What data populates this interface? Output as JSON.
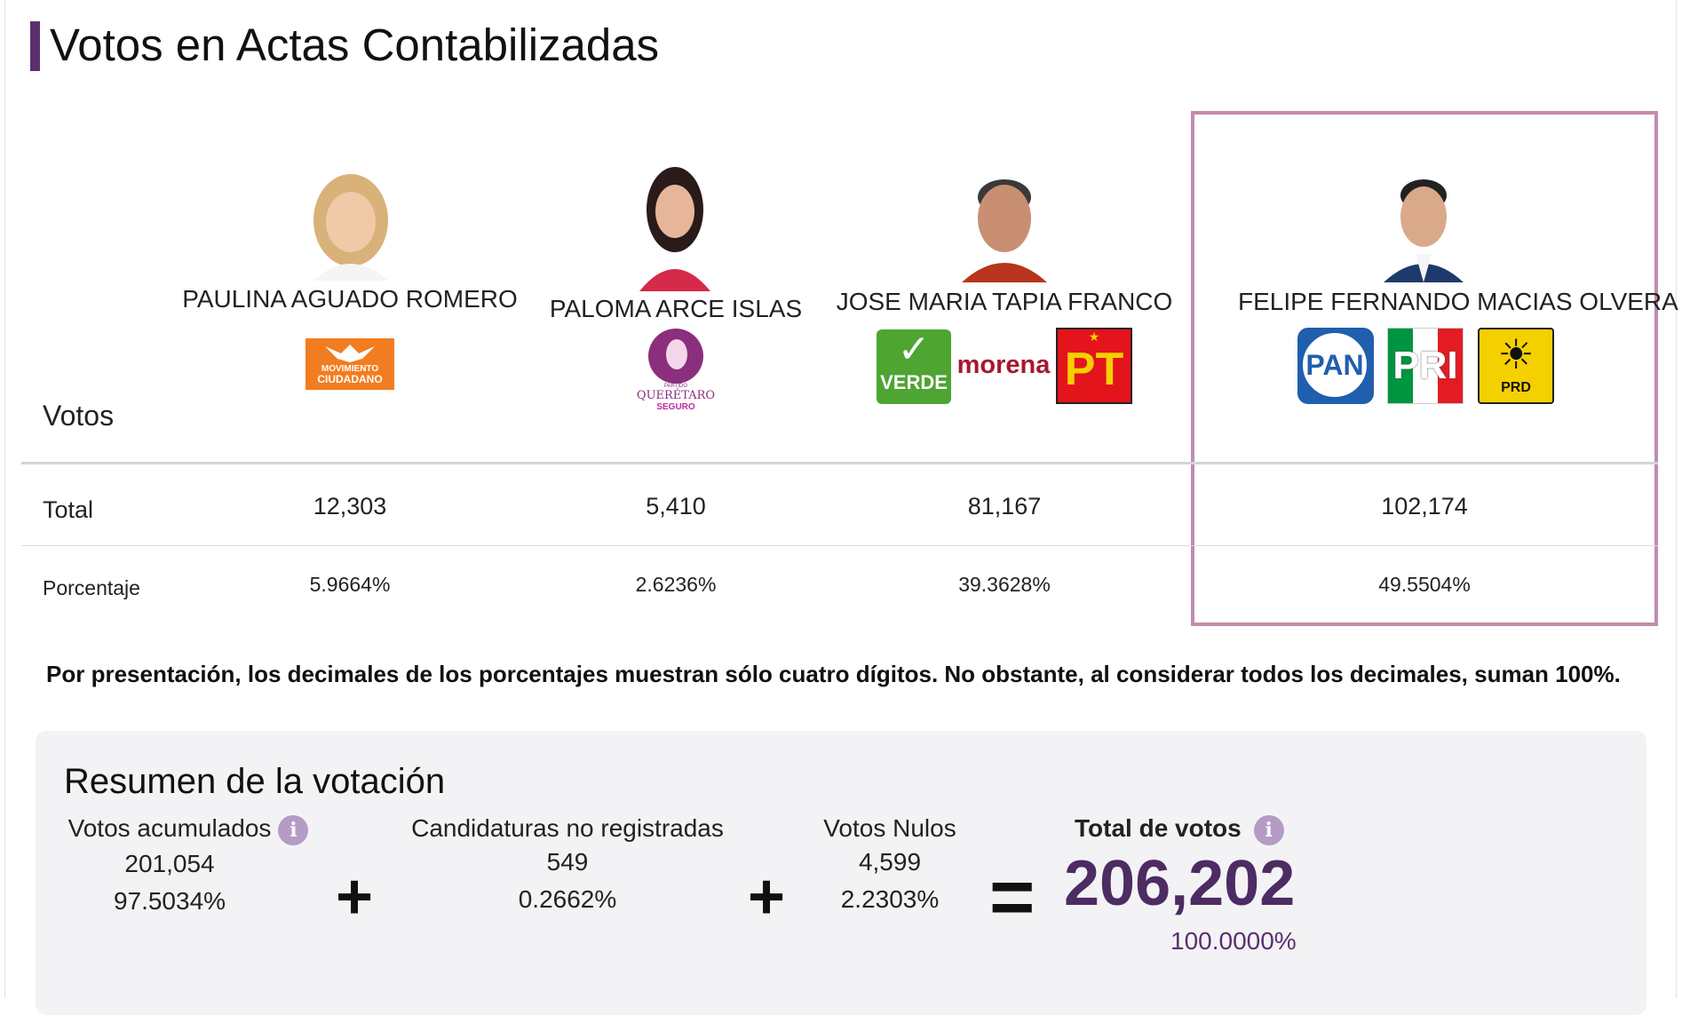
{
  "header": {
    "title": "Votos en Actas Contabilizadas"
  },
  "table": {
    "votos_label": "Votos",
    "total_label": "Total",
    "percent_label": "Porcentaje"
  },
  "candidates": [
    {
      "name": "PAULINA AGUADO ROMERO",
      "total": "12,303",
      "percent": "5.9664%",
      "parties": [
        {
          "logo": "movimiento-ciudadano-logo",
          "line1": "MOVIMIENTO",
          "line2": "CIUDADANO",
          "color": "#f27d21"
        }
      ]
    },
    {
      "name": "PALOMA ARCE ISLAS",
      "total": "5,410",
      "percent": "2.6236%",
      "parties": [
        {
          "logo": "queretaro-seguro-logo",
          "line0": "PARTIDO",
          "line1": "QUERÉTARO",
          "line2": "SEGURO",
          "color": "#8b2f7c"
        }
      ]
    },
    {
      "name": "JOSE MARIA TAPIA FRANCO",
      "total": "81,167",
      "percent": "39.3628%",
      "parties": [
        {
          "logo": "verde-logo",
          "text": "VERDE",
          "color": "#4ea531"
        },
        {
          "logo": "morena-logo",
          "text": "morena",
          "color": "#a6192e"
        },
        {
          "logo": "pt-logo",
          "text": "PT",
          "color": "#e3141c"
        }
      ]
    },
    {
      "name": "FELIPE FERNANDO MACIAS OLVERA",
      "total": "102,174",
      "percent": "49.5504%",
      "highlighted": true,
      "parties": [
        {
          "logo": "pan-logo",
          "text": "PAN",
          "color": "#1f5fae"
        },
        {
          "logo": "pri-logo",
          "text": "PRI",
          "color": "#009540"
        },
        {
          "logo": "prd-logo",
          "text": "PRD",
          "color": "#f5d000"
        }
      ]
    }
  ],
  "note": "Por presentación, los decimales de los porcentajes muestran sólo cuatro dígitos. No obstante, al considerar todos los decimales, suman 100%.",
  "summary": {
    "title": "Resumen de la votación",
    "accumulated": {
      "label": "Votos acumulados",
      "value": "201,054",
      "percent": "97.5034%"
    },
    "unregistered": {
      "label": "Candidaturas no registradas",
      "value": "549",
      "percent": "0.2662%"
    },
    "null_votes": {
      "label": "Votos Nulos",
      "value": "4,599",
      "percent": "2.2303%"
    },
    "total": {
      "label": "Total de votos",
      "value": "206,202",
      "percent": "100.0000%"
    },
    "plus_symbol": "+",
    "equals_symbol": "="
  },
  "colors": {
    "accent": "#5b2f6e",
    "highlight_border": "#c28cab",
    "info_icon": "#b59bc6"
  }
}
